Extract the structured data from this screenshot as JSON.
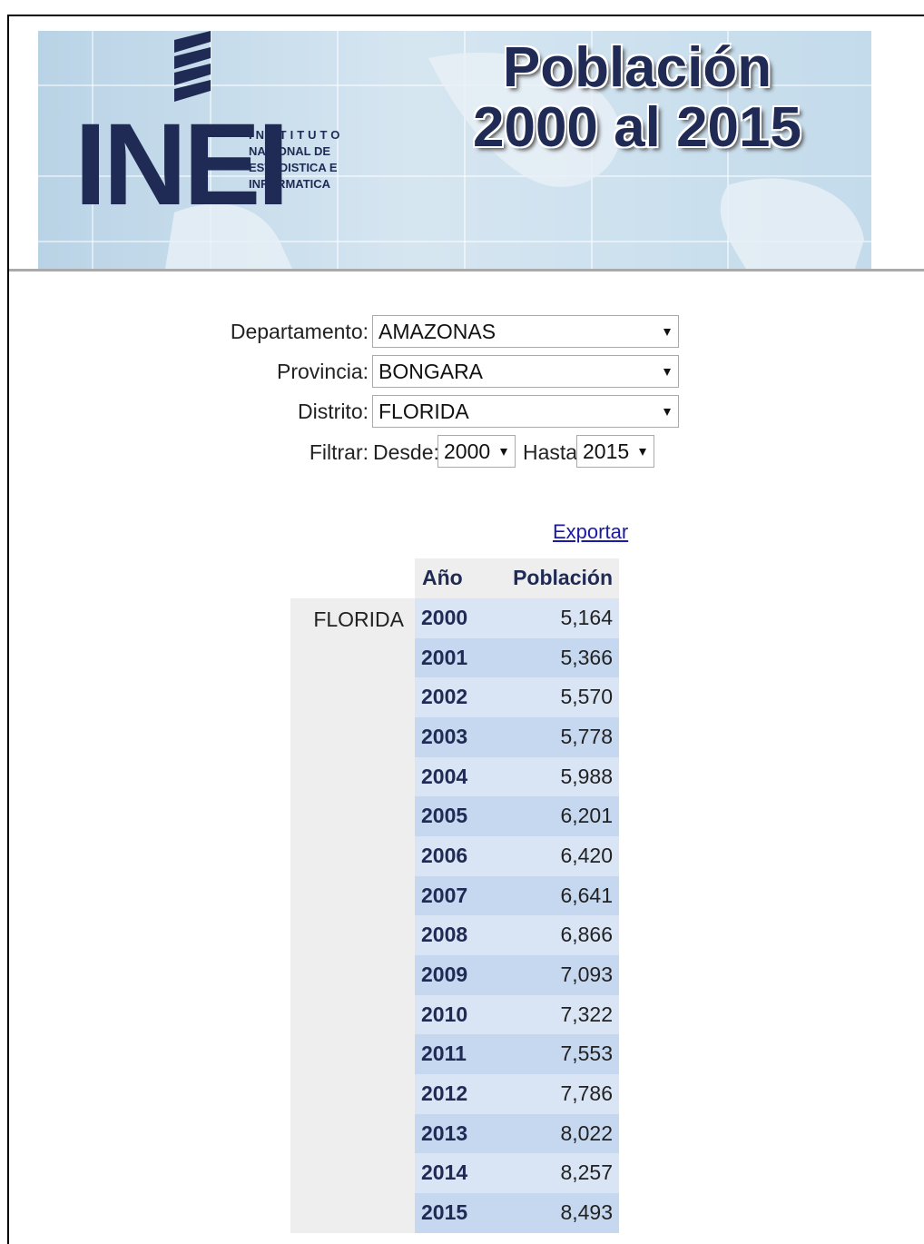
{
  "header": {
    "logo": "INEI",
    "institute": [
      "INSTITUTO",
      "NACIONAL DE",
      "ESTADISTICA E",
      "INFORMATICA"
    ],
    "title": [
      "Población",
      "2000 al 2015"
    ]
  },
  "form": {
    "departamento": {
      "label": "Departamento:",
      "value": "AMAZONAS"
    },
    "provincia": {
      "label": "Provincia:",
      "value": "BONGARA"
    },
    "distrito": {
      "label": "Distrito:",
      "value": "FLORIDA"
    },
    "filtrar": {
      "label": "Filtrar:",
      "desde_label": "Desde:",
      "desde": "2000",
      "hasta_label": "Hasta",
      "hasta": "2015"
    }
  },
  "export": "Exportar",
  "table": {
    "headers": [
      "Año",
      "Población"
    ],
    "district": "FLORIDA",
    "rows": [
      [
        "2000",
        "5,164"
      ],
      [
        "2001",
        "5,366"
      ],
      [
        "2002",
        "5,570"
      ],
      [
        "2003",
        "5,778"
      ],
      [
        "2004",
        "5,988"
      ],
      [
        "2005",
        "6,201"
      ],
      [
        "2006",
        "6,420"
      ],
      [
        "2007",
        "6,641"
      ],
      [
        "2008",
        "6,866"
      ],
      [
        "2009",
        "7,093"
      ],
      [
        "2010",
        "7,322"
      ],
      [
        "2011",
        "7,553"
      ],
      [
        "2012",
        "7,786"
      ],
      [
        "2013",
        "8,022"
      ],
      [
        "2014",
        "8,257"
      ],
      [
        "2015",
        "8,493"
      ]
    ]
  }
}
